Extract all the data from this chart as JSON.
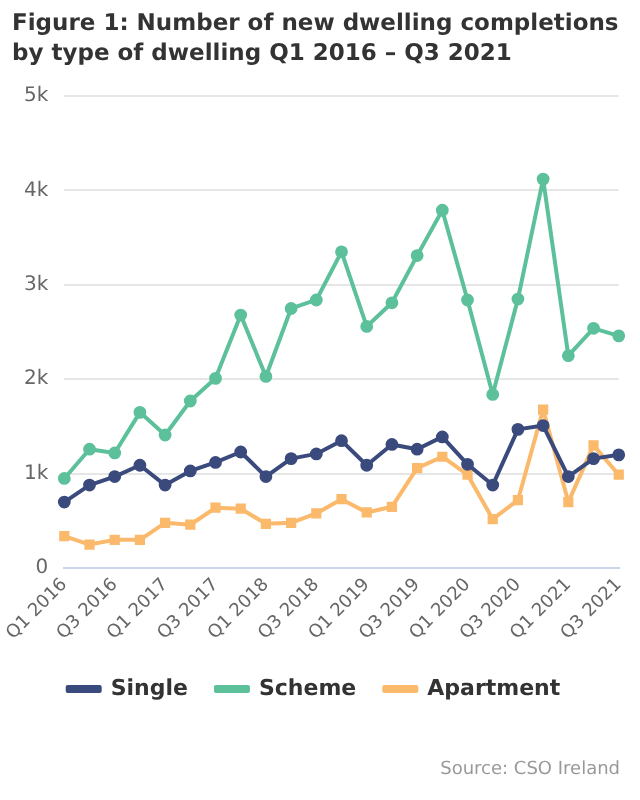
{
  "chart_data": {
    "type": "line",
    "title": "Figure 1: Number of new dwelling completions by type of dwelling Q1 2016 – Q3 2021",
    "categories": [
      "Q1 2016",
      null,
      "Q3 2016",
      null,
      "Q1 2017",
      null,
      "Q3 2017",
      null,
      "Q1 2018",
      null,
      "Q3 2018",
      null,
      "Q1 2019",
      null,
      "Q3 2019",
      null,
      "Q1 2020",
      null,
      "Q3 2020",
      null,
      "Q1 2021",
      null,
      "Q3 2021"
    ],
    "series": [
      {
        "name": "Single",
        "color": "#3b4a7c",
        "marker": "circle",
        "values": [
          700,
          880,
          970,
          1090,
          880,
          1030,
          1120,
          1230,
          970,
          1160,
          1210,
          1350,
          1090,
          1310,
          1260,
          1390,
          1100,
          880,
          1470,
          1510,
          970,
          1160,
          1200
        ]
      },
      {
        "name": "Scheme",
        "color": "#5cc19b",
        "marker": "circle",
        "values": [
          950,
          1260,
          1220,
          1650,
          1410,
          1770,
          2010,
          2680,
          2030,
          2750,
          2840,
          3350,
          2560,
          2810,
          3310,
          3790,
          2840,
          1840,
          2850,
          4120,
          2250,
          2540,
          2460
        ]
      },
      {
        "name": "Apartment",
        "color": "#fbb96b",
        "marker": "square",
        "values": [
          340,
          250,
          300,
          300,
          480,
          460,
          640,
          630,
          470,
          480,
          580,
          730,
          590,
          650,
          1060,
          1180,
          990,
          520,
          720,
          1680,
          700,
          1300,
          990
        ]
      }
    ],
    "ylim": [
      0,
      5000
    ],
    "yticks": [
      0,
      {
        "value": 1000,
        "label": "1k"
      },
      {
        "value": 2000,
        "label": "2k"
      },
      {
        "value": 3000,
        "label": "3k"
      },
      {
        "value": 4000,
        "label": "4k"
      },
      {
        "value": 5000,
        "label": "5k"
      }
    ],
    "grid": "y",
    "legend": "bottom",
    "line_style": "solid",
    "annotations": [
      "Source: CSO Ireland"
    ]
  }
}
